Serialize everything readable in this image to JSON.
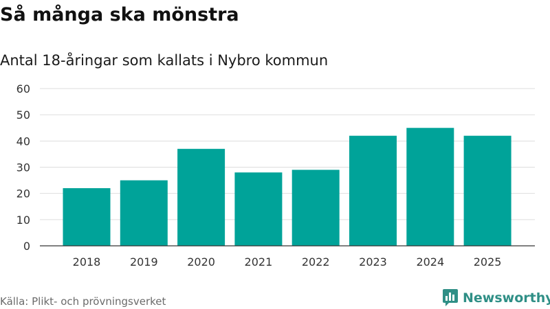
{
  "header": {
    "title": "Så många ska mönstra",
    "subtitle": "Antal 18-åringar som kallats i Nybro kommun"
  },
  "footer": {
    "source": "Källa: Plikt- och prövningsverket",
    "brand": "Newsworthy"
  },
  "colors": {
    "bar": "#00a399",
    "grid": "#dddddd",
    "axis": "#333333",
    "brand": "#2f8f86"
  },
  "chart_data": {
    "type": "bar",
    "categories": [
      "2018",
      "2019",
      "2020",
      "2021",
      "2022",
      "2023",
      "2024",
      "2025"
    ],
    "values": [
      22,
      25,
      37,
      28,
      29,
      42,
      45,
      42
    ],
    "ylim": [
      0,
      60
    ],
    "yticks": [
      0,
      10,
      20,
      30,
      40,
      50,
      60
    ],
    "grid": true,
    "legend": "none"
  }
}
